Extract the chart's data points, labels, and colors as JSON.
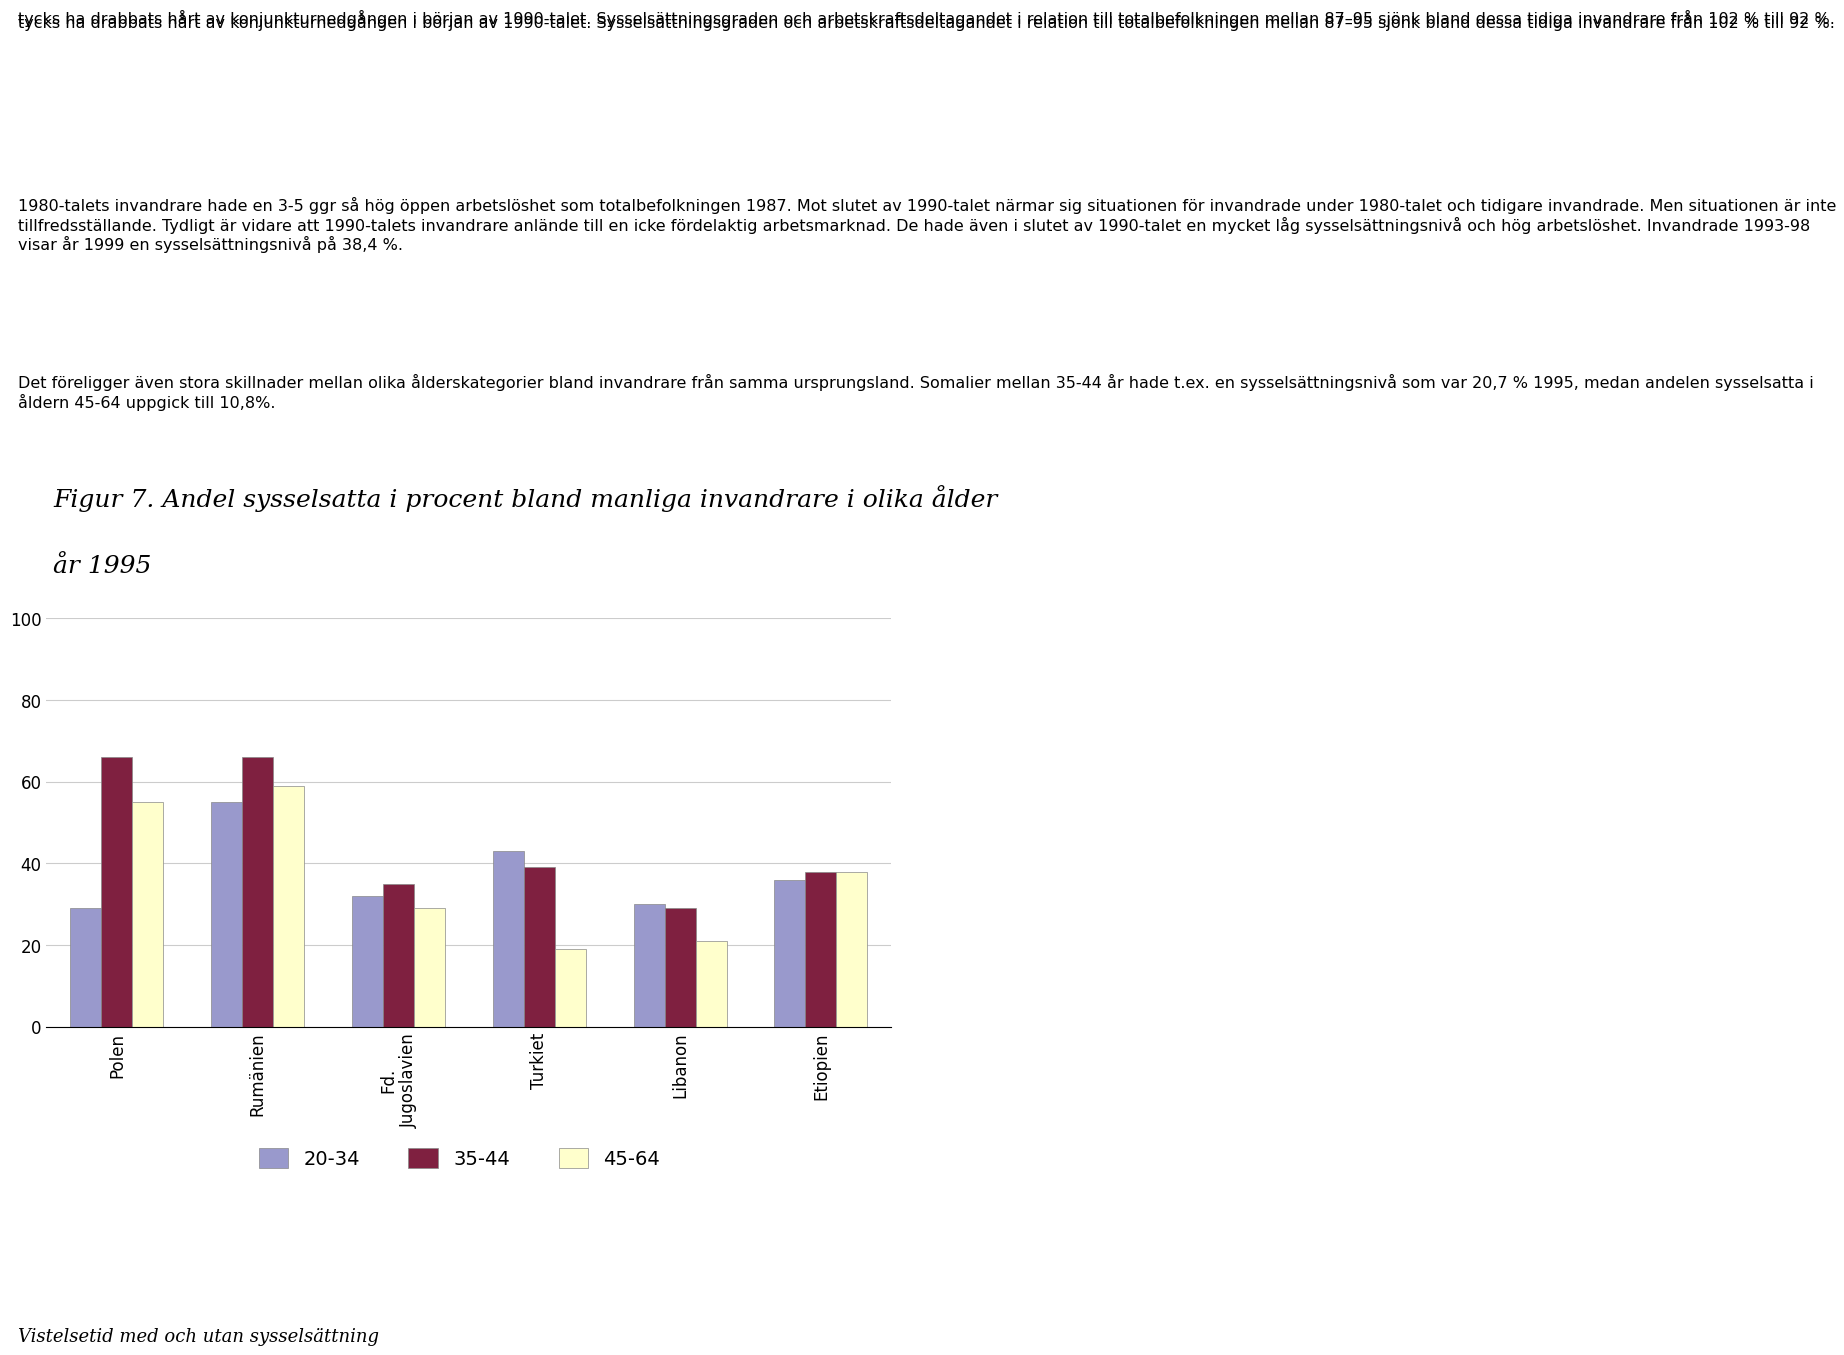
{
  "title_line1": "Figur 7. Andel sysselsatta i procent bland manliga invandrare i olika ålder",
  "title_line2": "år 1995",
  "categories": [
    "Polen",
    "Rumänien",
    "Fd.\nJugoslavien",
    "Turkiet",
    "Libanon",
    "Etiopien"
  ],
  "series": {
    "20-34": [
      29,
      55,
      32,
      43,
      30,
      36
    ],
    "35-44": [
      66,
      66,
      35,
      39,
      29,
      38
    ],
    "45-64": [
      55,
      59,
      29,
      19,
      21,
      38
    ]
  },
  "colors": {
    "20-34": "#9999cc",
    "35-44": "#7f2040",
    "45-64": "#ffffcc"
  },
  "ylim": [
    0,
    100
  ],
  "yticks": [
    0,
    20,
    40,
    60,
    80,
    100
  ],
  "legend_labels": [
    "20-34",
    "35-44",
    "45-64"
  ],
  "body_para1": "tycks ha drabbats hårt av konjunkturnedgången i början av 1990-talet. Sysselsättningsgraden och arbetskraftsdeltagandet i relation till totalbefolkningen mellan 87–95 sjönk bland dessa tidiga invandrare från 102 % till 92 %.",
  "body_para2": "1980-talets invandrare hade en 3-5 ggr så hög öppen arbetslöshet som totalbefolkningen 1987. Mot slutet av 1990-talet närmar sig situationen för invandrade under 1980-talet och tidigare invandrade. Men situationen är inte tillfredsställande. Tydligt är vidare att 1990-talets invandrare anlände till en icke fördelaktig arbetsmarknad. De hade även i slutet av 1990-talet en mycket låg sysselsättningsnivå och hög arbetslöshet. Invandrade 1993-98 visar år 1999 en sysselsättningsnivå på 38,4 %.",
  "body_para3": "Det föreligger även stora skillnader mellan olika ålderskategorier bland invandrare från samma ursprungsland. Somalier mellan 35-44 år hade t.ex. en sysselsättningsnivå som var 20,7 % 1995, medan andelen sysselsatta i åldern 45-64 uppgick till 10,8%.",
  "footer_text": "Vistelsetid med och utan sysselsättning",
  "text_color": "#000000",
  "background_color": "#ffffff",
  "grid_color": "#cccccc",
  "bar_border_color": "#888888",
  "title_fontsize": 18,
  "body_fontsize": 11.5,
  "footer_fontsize": 13,
  "legend_fontsize": 14,
  "tick_fontsize": 12
}
